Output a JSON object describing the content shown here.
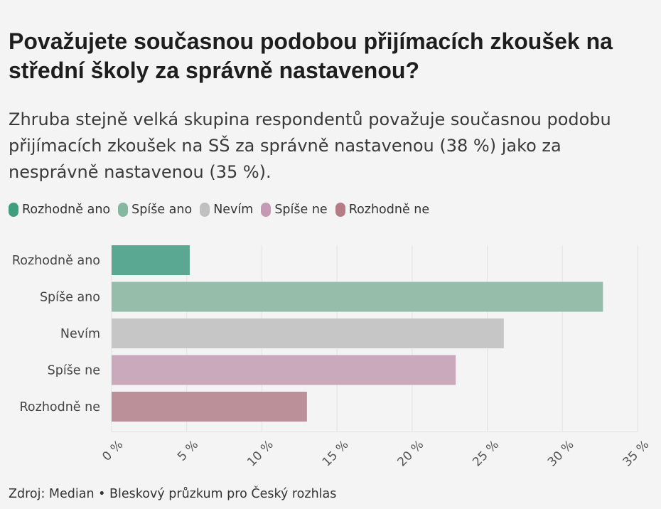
{
  "title": "Považujete současnou podobou přijímacích zkoušek na střední školy za správně nastavenou?",
  "subtitle": "Zhruba stejně velká skupina respondentů považuje současnou podobu přijímacích zkoušek na SŠ za správně nastavenou (38 %) jako za nesprávně nastavenou (35 %).",
  "legend": [
    {
      "label": "Rozhodně ano",
      "color": "#3f9e7e"
    },
    {
      "label": "Spíše ano",
      "color": "#85b8a0"
    },
    {
      "label": "Nevím",
      "color": "#c0c0c0"
    },
    {
      "label": "Spíše ne",
      "color": "#c59ab5"
    },
    {
      "label": "Rozhodně ne",
      "color": "#b77b88"
    }
  ],
  "chart_data": {
    "type": "bar",
    "orientation": "horizontal",
    "categories": [
      "Rozhodně ano",
      "Spíše ano",
      "Nevím",
      "Spíše ne",
      "Rozhodně ne"
    ],
    "values": [
      5.2,
      32.7,
      26.1,
      22.9,
      13
    ],
    "colors": [
      "#5aa891",
      "#95bdaa",
      "#c6c6c6",
      "#cba9bd",
      "#bc9099"
    ],
    "xlim": [
      0,
      35
    ],
    "xticks": [
      0,
      5,
      10,
      15,
      20,
      25,
      30,
      35
    ],
    "xtick_labels": [
      "0 %",
      "5 %",
      "10 %",
      "15 %",
      "20 %",
      "25 %",
      "30 %",
      "35 %"
    ],
    "grid": true
  },
  "footer": "Zdroj: Median • Bleskový průzkum pro Český rozhlas"
}
